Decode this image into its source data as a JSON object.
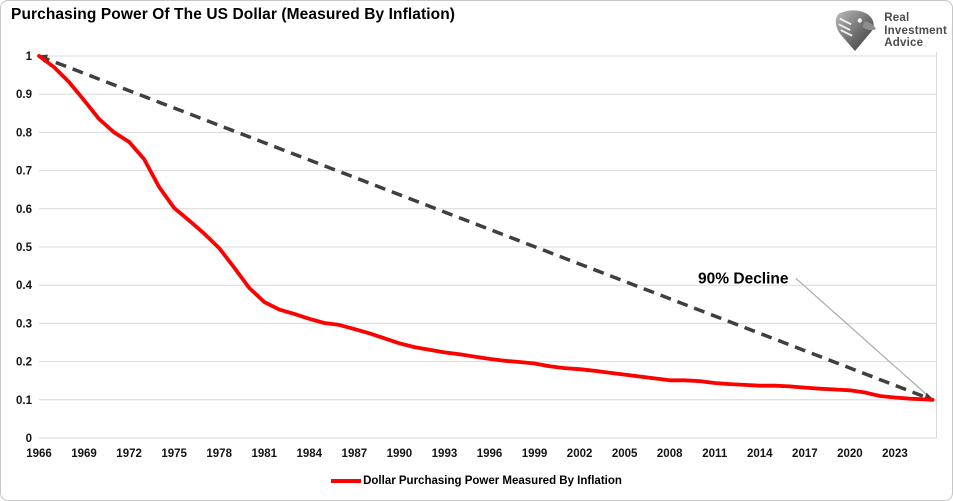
{
  "title": "Purchasing Power Of The US Dollar (Measured By Inflation)",
  "logo": {
    "lines": [
      "Real",
      "Investment",
      "Advice"
    ]
  },
  "legend": {
    "label": "Dollar Purchasing Power Measured By Inflation"
  },
  "colors": {
    "series": "#fe0000",
    "trend": "#3f3f3f",
    "grid": "#d9d9d9",
    "leader": "#ababab",
    "logo_text": "#4c4c4e"
  },
  "chart_data": {
    "type": "line",
    "title": "Purchasing Power Of The US Dollar (Measured By Inflation)",
    "xlabel": "",
    "ylabel": "",
    "xlim": [
      1966,
      2025.5
    ],
    "ylim": [
      0,
      1
    ],
    "grid": "horizontal",
    "legend_position": "bottom",
    "x_ticks": [
      "1966",
      "1969",
      "1972",
      "1975",
      "1978",
      "1981",
      "1984",
      "1987",
      "1990",
      "1993",
      "1996",
      "1999",
      "2002",
      "2005",
      "2008",
      "2011",
      "2014",
      "2017",
      "2020",
      "2023"
    ],
    "y_ticks": [
      "1",
      "0.9",
      "0.8",
      "0.7",
      "0.6",
      "0.5",
      "0.4",
      "0.3",
      "0.2",
      "0.1",
      "0"
    ],
    "series": [
      {
        "name": "Linear decline reference (dashed)",
        "style": "dashed",
        "color": "#3f3f3f",
        "width": 3.5,
        "x": [
          1966,
          2025.5
        ],
        "y": [
          1.0,
          0.1
        ]
      },
      {
        "name": "Dollar Purchasing Power Measured By Inflation",
        "style": "solid",
        "color": "#fe0000",
        "width": 3.8,
        "x": [
          1966,
          1967,
          1968,
          1969,
          1970,
          1971,
          1972,
          1973,
          1974,
          1975,
          1976,
          1977,
          1978,
          1979,
          1980,
          1981,
          1982,
          1983,
          1984,
          1985,
          1986,
          1987,
          1988,
          1989,
          1990,
          1991,
          1992,
          1993,
          1994,
          1995,
          1996,
          1997,
          1998,
          1999,
          2000,
          2001,
          2002,
          2003,
          2004,
          2005,
          2006,
          2007,
          2008,
          2009,
          2010,
          2011,
          2012,
          2013,
          2014,
          2015,
          2016,
          2017,
          2018,
          2019,
          2020,
          2021,
          2022,
          2023,
          2024,
          2025,
          2025.5
        ],
        "y": [
          1.0,
          0.971,
          0.932,
          0.884,
          0.835,
          0.8,
          0.775,
          0.73,
          0.657,
          0.602,
          0.569,
          0.535,
          0.497,
          0.446,
          0.393,
          0.356,
          0.336,
          0.325,
          0.312,
          0.301,
          0.296,
          0.285,
          0.274,
          0.261,
          0.248,
          0.238,
          0.231,
          0.224,
          0.219,
          0.213,
          0.207,
          0.202,
          0.199,
          0.195,
          0.188,
          0.183,
          0.18,
          0.176,
          0.171,
          0.166,
          0.161,
          0.156,
          0.151,
          0.151,
          0.149,
          0.144,
          0.141,
          0.139,
          0.137,
          0.137,
          0.135,
          0.132,
          0.129,
          0.127,
          0.125,
          0.119,
          0.11,
          0.106,
          0.103,
          0.101,
          0.1
        ]
      }
    ],
    "annotations": [
      {
        "text": "90% Decline",
        "x": 2012.9,
        "y": 0.404,
        "leader": {
          "from": [
            2016.4,
            0.418
          ],
          "to": [
            2025.3,
            0.107
          ]
        }
      }
    ]
  }
}
